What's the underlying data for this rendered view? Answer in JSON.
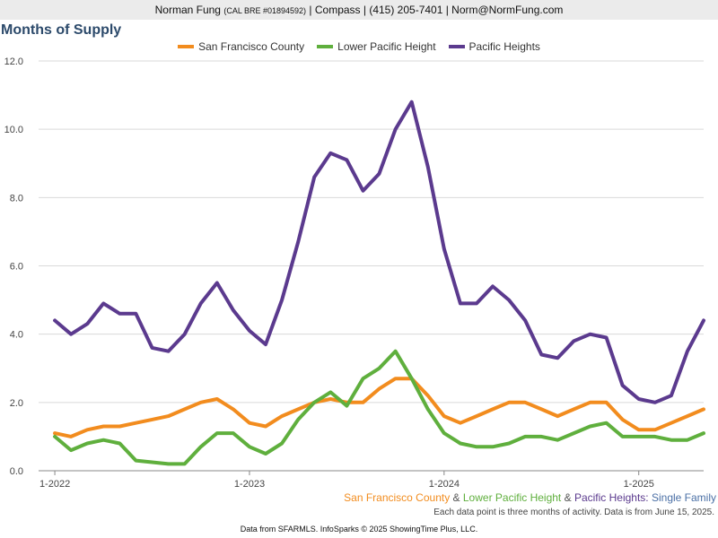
{
  "header": {
    "name": "Norman Fung",
    "license": "(CAL BRE #01894592)",
    "rest": "| Compass | (415) 205-7401 | Norm@NormFung.com"
  },
  "title": "Months of Supply",
  "caption": {
    "sf": "San Francisco County",
    "amp1": " & ",
    "lph": "Lower Pacific Height",
    "amp2": " & ",
    "ph": "Pacific Heights:",
    "rest": " Single Family"
  },
  "note": "Each data point is three months of activity. Data is from June 15, 2025.",
  "footer": "Data from SFARMLS. InfoSparks © 2025 ShowingTime Plus, LLC.",
  "chart_data": {
    "type": "line",
    "title": "Months of Supply",
    "x_start": "2022-01",
    "x": [
      "2022-01",
      "2022-02",
      "2022-03",
      "2022-04",
      "2022-05",
      "2022-06",
      "2022-07",
      "2022-08",
      "2022-09",
      "2022-10",
      "2022-11",
      "2022-12",
      "2023-01",
      "2023-02",
      "2023-03",
      "2023-04",
      "2023-05",
      "2023-06",
      "2023-07",
      "2023-08",
      "2023-09",
      "2023-10",
      "2023-11",
      "2023-12",
      "2024-01",
      "2024-02",
      "2024-03",
      "2024-04",
      "2024-05",
      "2024-06",
      "2024-07",
      "2024-08",
      "2024-09",
      "2024-10",
      "2024-11",
      "2024-12",
      "2025-01",
      "2025-02",
      "2025-03",
      "2025-04",
      "2025-05"
    ],
    "x_ticks": [
      {
        "index": 0,
        "label": "1-2022"
      },
      {
        "index": 12,
        "label": "1-2023"
      },
      {
        "index": 24,
        "label": "1-2024"
      },
      {
        "index": 36,
        "label": "1-2025"
      }
    ],
    "ylim": [
      0,
      12
    ],
    "y_ticks": [
      "0.0",
      "2.0",
      "4.0",
      "6.0",
      "8.0",
      "10.0",
      "12.0"
    ],
    "grid": true,
    "legend_position": "top-center",
    "series": [
      {
        "name": "San Francisco County",
        "color": "#f28c1e",
        "values": [
          1.1,
          1.0,
          1.2,
          1.3,
          1.3,
          1.4,
          1.5,
          1.6,
          1.8,
          2.0,
          2.1,
          1.8,
          1.4,
          1.3,
          1.6,
          1.8,
          2.0,
          2.1,
          2.0,
          2.0,
          2.4,
          2.7,
          2.7,
          2.2,
          1.6,
          1.4,
          1.6,
          1.8,
          2.0,
          2.0,
          1.8,
          1.6,
          1.8,
          2.0,
          2.0,
          1.5,
          1.2,
          1.2,
          1.4,
          1.6,
          1.8
        ]
      },
      {
        "name": "Lower Pacific Height",
        "color": "#5faf3d",
        "values": [
          1.0,
          0.6,
          0.8,
          0.9,
          0.8,
          0.3,
          0.25,
          0.2,
          0.2,
          0.7,
          1.1,
          1.1,
          0.7,
          0.5,
          0.8,
          1.5,
          2.0,
          2.3,
          1.9,
          2.7,
          3.0,
          3.5,
          2.7,
          1.8,
          1.1,
          0.8,
          0.7,
          0.7,
          0.8,
          1.0,
          1.0,
          0.9,
          1.1,
          1.3,
          1.4,
          1.0,
          1.0,
          1.0,
          0.9,
          0.9,
          1.1
        ]
      },
      {
        "name": "Pacific Heights",
        "color": "#5b3a8e",
        "values": [
          4.4,
          4.0,
          4.3,
          4.9,
          4.6,
          4.6,
          3.6,
          3.5,
          4.0,
          4.9,
          5.5,
          4.7,
          4.1,
          3.7,
          5.0,
          6.7,
          8.6,
          9.3,
          9.1,
          8.2,
          8.7,
          10.0,
          10.8,
          8.9,
          6.5,
          4.9,
          4.9,
          5.4,
          5.0,
          4.4,
          3.4,
          3.3,
          3.8,
          4.0,
          3.9,
          2.5,
          2.1,
          2.0,
          2.2,
          3.5,
          4.4
        ]
      }
    ]
  }
}
